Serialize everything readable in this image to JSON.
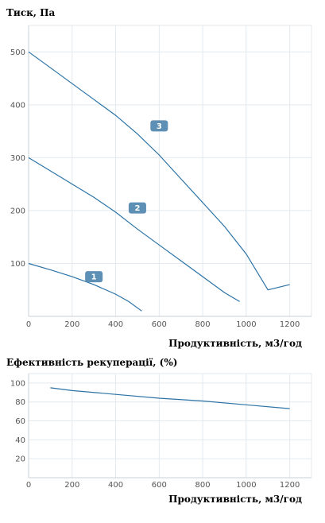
{
  "chart_data": [
    {
      "type": "line",
      "ylabel": "Тиск, Па",
      "xlabel": "Продуктивність, м3/год",
      "xlim": [
        0,
        1300
      ],
      "ylim": [
        0,
        550
      ],
      "x_ticks": [
        0,
        200,
        400,
        600,
        800,
        1000,
        1200
      ],
      "y_ticks": [
        100,
        200,
        300,
        400,
        500
      ],
      "grid": true,
      "series": [
        {
          "name": "1",
          "points": [
            [
              0,
              100
            ],
            [
              100,
              88
            ],
            [
              200,
              75
            ],
            [
              300,
              60
            ],
            [
              400,
              42
            ],
            [
              460,
              28
            ],
            [
              520,
              10
            ]
          ]
        },
        {
          "name": "2",
          "points": [
            [
              0,
              300
            ],
            [
              100,
              275
            ],
            [
              200,
              250
            ],
            [
              300,
              225
            ],
            [
              400,
              197
            ],
            [
              500,
              165
            ],
            [
              600,
              135
            ],
            [
              700,
              105
            ],
            [
              800,
              75
            ],
            [
              900,
              45
            ],
            [
              970,
              28
            ]
          ]
        },
        {
          "name": "3",
          "points": [
            [
              0,
              500
            ],
            [
              100,
              470
            ],
            [
              200,
              440
            ],
            [
              300,
              410
            ],
            [
              400,
              380
            ],
            [
              500,
              345
            ],
            [
              600,
              305
            ],
            [
              700,
              260
            ],
            [
              800,
              215
            ],
            [
              900,
              170
            ],
            [
              1000,
              118
            ],
            [
              1100,
              50
            ],
            [
              1200,
              60
            ]
          ]
        }
      ]
    },
    {
      "type": "line",
      "ylabel": "Ефективність рекуперації, (%)",
      "xlabel": "Продуктивність, м3/год",
      "xlim": [
        0,
        1300
      ],
      "ylim": [
        0,
        110
      ],
      "x_ticks": [
        0,
        200,
        400,
        600,
        800,
        1000,
        1200
      ],
      "y_ticks": [
        20,
        40,
        60,
        80,
        100
      ],
      "grid": true,
      "series": [
        {
          "name": "",
          "points": [
            [
              100,
              95
            ],
            [
              200,
              92
            ],
            [
              400,
              88
            ],
            [
              600,
              84
            ],
            [
              800,
              81
            ],
            [
              1000,
              77
            ],
            [
              1200,
              73
            ]
          ]
        }
      ]
    }
  ]
}
